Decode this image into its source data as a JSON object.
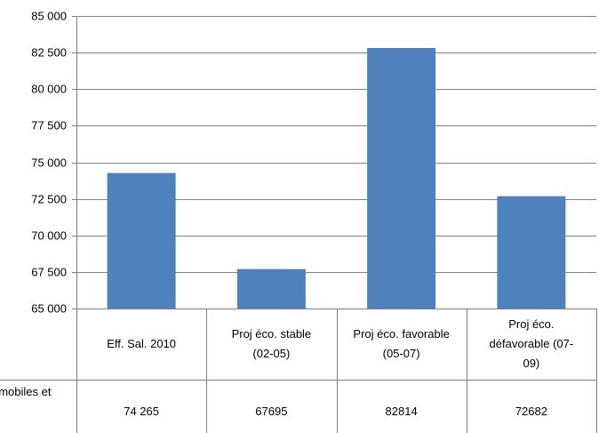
{
  "chart_data": {
    "type": "bar",
    "categories": [
      [
        "Eff. Sal. 2010"
      ],
      [
        "Proj éco. stable",
        "(02-05)"
      ],
      [
        "Proj éco. favorable",
        "(05-07)"
      ],
      [
        "Proj éco.",
        "défavorable (07-",
        "09)"
      ]
    ],
    "values": [
      74265,
      67695,
      82814,
      72682
    ],
    "value_labels": [
      "74 265",
      "67695",
      "82814",
      "72682"
    ],
    "ylim": [
      65000,
      85000
    ],
    "yticks": [
      {
        "value": 65000,
        "label": "65 000"
      },
      {
        "value": 67500,
        "label": "67 500"
      },
      {
        "value": 70000,
        "label": "70 000"
      },
      {
        "value": 72500,
        "label": "72 500"
      },
      {
        "value": 75000,
        "label": "75 000"
      },
      {
        "value": 77500,
        "label": "77 500"
      },
      {
        "value": 80000,
        "label": "80 000"
      },
      {
        "value": 82500,
        "label": "82 500"
      },
      {
        "value": 85000,
        "label": "85 000"
      }
    ],
    "row_label": "omobiles et",
    "grid": true,
    "colors": {
      "bar": "#4f81bd",
      "grid": "#808080",
      "axis": "#808080"
    }
  }
}
